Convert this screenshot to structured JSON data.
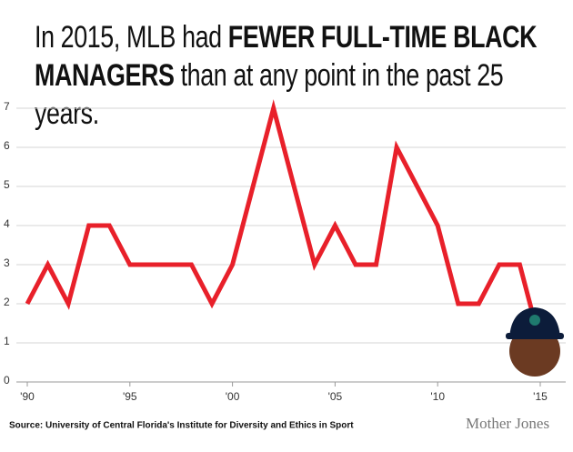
{
  "chart_data": {
    "type": "line",
    "title_parts": [
      "In 2015, MLB had",
      "FEWER FULL-TIME BLACK",
      "MANAGERS",
      "than at any point in the past 25 years."
    ],
    "x": [
      1990,
      1991,
      1992,
      1993,
      1994,
      1995,
      1996,
      1997,
      1998,
      1999,
      2000,
      2001,
      2002,
      2003,
      2004,
      2005,
      2006,
      2007,
      2008,
      2009,
      2010,
      2011,
      2012,
      2013,
      2014,
      2015
    ],
    "series": [
      {
        "name": "Full-time black managers",
        "color": "#e8202a",
        "values": [
          2,
          3,
          2,
          4,
          4,
          3,
          3,
          3,
          3,
          2,
          3,
          5,
          7,
          5,
          3,
          4,
          3,
          3,
          6,
          5,
          4,
          2,
          2,
          3,
          3,
          1
        ]
      }
    ],
    "xlim": [
      1990,
      2015
    ],
    "xticks": [
      {
        "value": 1990,
        "label": "'90"
      },
      {
        "value": 1995,
        "label": "'95"
      },
      {
        "value": 2000,
        "label": "'00"
      },
      {
        "value": 2005,
        "label": "'05"
      },
      {
        "value": 2010,
        "label": "'10"
      },
      {
        "value": 2015,
        "label": "'15"
      }
    ],
    "ylim": [
      0,
      7
    ],
    "yticks": [
      0,
      1,
      2,
      3,
      4,
      5,
      6,
      7
    ],
    "grid": true,
    "source": "Source: University of Central Florida's Institute for Diversity and Ethics in Sport",
    "credit": "Mother Jones"
  }
}
